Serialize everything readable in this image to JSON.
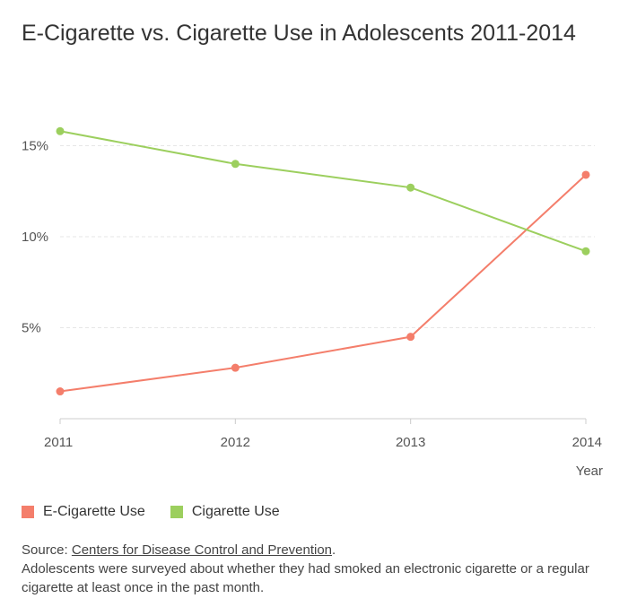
{
  "title": "E-Cigarette vs. Cigarette Use in Adolescents 2011-2014",
  "source_prefix": "Source: ",
  "source_link": "Centers for Disease Control and Prevention",
  "source_suffix": ".",
  "note": "Adolescents were surveyed about whether they had smoked an electronic cigarette or a regular cigarette at least once in the past month.",
  "chart_data": {
    "type": "line",
    "x": [
      "2011",
      "2012",
      "2013",
      "2014"
    ],
    "xlabel": "Year",
    "ylabel": "",
    "ylim": [
      0,
      16.5
    ],
    "yticks": [
      5,
      10,
      15
    ],
    "ytick_labels": [
      "5%",
      "10%",
      "15%"
    ],
    "grid": true,
    "legend_position": "bottom-left",
    "series": [
      {
        "name": "E-Cigarette Use",
        "values": [
          1.5,
          2.8,
          4.5,
          13.4
        ],
        "color": "#f47e6b"
      },
      {
        "name": "Cigarette Use",
        "values": [
          15.8,
          14.0,
          12.7,
          9.2
        ],
        "color": "#9ccf5e"
      }
    ]
  }
}
